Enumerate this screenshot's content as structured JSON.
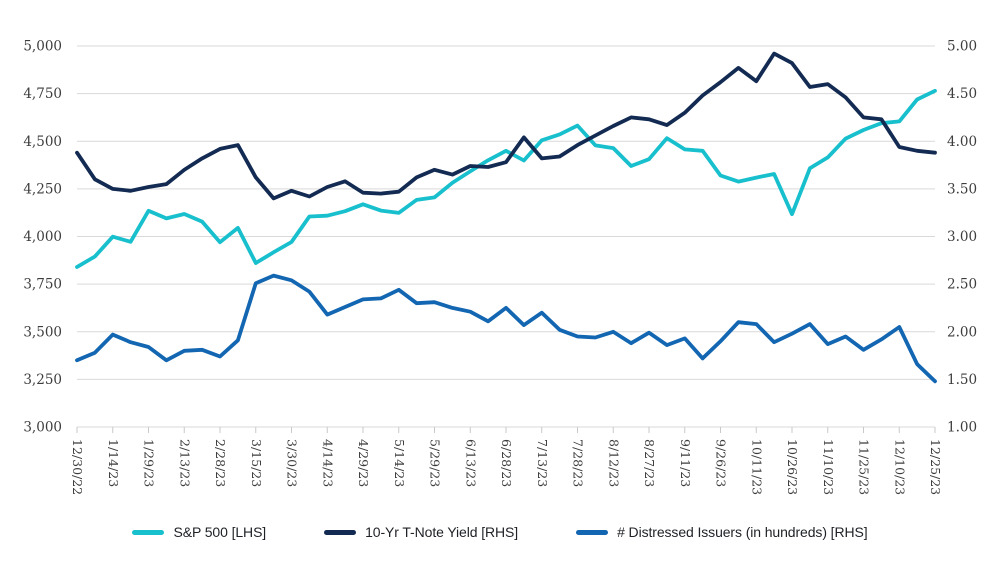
{
  "colors": {
    "background": "#FFFFFF",
    "gridline": "#D9D9D9",
    "tick": "#C9C9C9",
    "axis_text": "#3D3D3D",
    "legend_text": "#1E2126",
    "sp500": "#18BFCD",
    "tnote": "#132B52",
    "distressed": "#1366B1"
  },
  "chart_data": {
    "type": "line",
    "title": "",
    "grid": "horizontal",
    "legend_position": "bottom-center",
    "x_labels": [
      "12/30/22",
      "1/14/23",
      "1/29/23",
      "2/13/23",
      "2/28/23",
      "3/15/23",
      "3/30/23",
      "4/14/23",
      "4/29/23",
      "5/14/23",
      "5/29/23",
      "6/13/23",
      "6/28/23",
      "7/13/23",
      "7/28/23",
      "8/12/23",
      "8/27/23",
      "9/11/23",
      "9/26/23",
      "10/11/23",
      "10/26/23",
      "11/10/23",
      "11/25/23",
      "12/10/23",
      "12/25/23"
    ],
    "points_per_label_interval": 2,
    "y_left": {
      "min": 3000,
      "max": 5000,
      "tick_labels": [
        "5,000",
        "4,750",
        "4,500",
        "4,250",
        "4,000",
        "3,750",
        "3,500",
        "3,250",
        "3,000"
      ]
    },
    "y_right": {
      "min": 1.0,
      "max": 5.0,
      "tick_labels": [
        "5.00",
        "4.50",
        "4.00",
        "3.50",
        "3.00",
        "2.50",
        "2.00",
        "1.50",
        "1.00"
      ]
    },
    "series": [
      {
        "name": "S&P 500 [LHS]",
        "axis": "left",
        "color": "#18BFCD",
        "values": [
          3840,
          3895,
          3999,
          3972,
          4135,
          4095,
          4118,
          4078,
          3970,
          4045,
          3861,
          3917,
          3971,
          4105,
          4109,
          4133,
          4169,
          4136,
          4124,
          4192,
          4205,
          4282,
          4342,
          4400,
          4450,
          4399,
          4505,
          4536,
          4582,
          4478,
          4464,
          4370,
          4406,
          4516,
          4457,
          4450,
          4320,
          4288,
          4309,
          4328,
          4117,
          4358,
          4415,
          4514,
          4559,
          4595,
          4604,
          4719,
          4765
        ]
      },
      {
        "name": "10-Yr T-Note Yield [RHS]",
        "axis": "right",
        "color": "#132B52",
        "values": [
          3.88,
          3.6,
          3.5,
          3.48,
          3.52,
          3.55,
          3.7,
          3.82,
          3.92,
          3.96,
          3.62,
          3.4,
          3.48,
          3.42,
          3.52,
          3.58,
          3.46,
          3.45,
          3.47,
          3.62,
          3.7,
          3.65,
          3.74,
          3.73,
          3.78,
          4.04,
          3.82,
          3.84,
          3.96,
          4.06,
          4.16,
          4.25,
          4.23,
          4.17,
          4.3,
          4.48,
          4.62,
          4.77,
          4.63,
          4.92,
          4.82,
          4.57,
          4.6,
          4.46,
          4.25,
          4.23,
          3.94,
          3.9,
          3.88
        ]
      },
      {
        "name": "# Distressed Issuers (in hundreds) [RHS]",
        "axis": "right",
        "color": "#1366B1",
        "values": [
          1.7,
          1.78,
          1.97,
          1.89,
          1.84,
          1.7,
          1.8,
          1.81,
          1.74,
          1.91,
          2.51,
          2.59,
          2.54,
          2.42,
          2.18,
          2.26,
          2.34,
          2.35,
          2.44,
          2.3,
          2.31,
          2.25,
          2.21,
          2.11,
          2.25,
          2.07,
          2.2,
          2.02,
          1.95,
          1.94,
          2.0,
          1.88,
          1.99,
          1.86,
          1.93,
          1.72,
          1.9,
          2.1,
          2.08,
          1.89,
          1.98,
          2.08,
          1.87,
          1.95,
          1.81,
          1.92,
          2.05,
          1.66,
          1.48
        ]
      }
    ]
  }
}
